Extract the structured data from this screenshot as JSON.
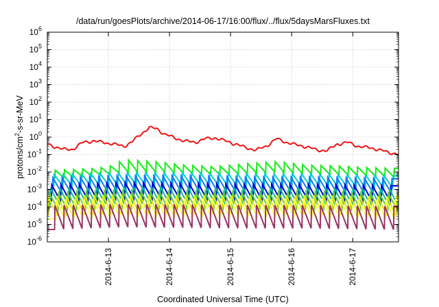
{
  "chart_data": {
    "type": "line",
    "title": "/data/run/goesPlots/archive/2014-06-17/16:00/flux/../flux/5daysMarsFluxes.txt",
    "xlabel": "Coordinated Universal Time (UTC)",
    "ylabel": "protons/cm²-s-sr-MeV",
    "ylabel_parts": {
      "base": "protons/cm",
      "sup": "2",
      "rest": "-s-sr-MeV"
    },
    "y_scale": "log",
    "ylim": [
      1e-06,
      1000000.0
    ],
    "y_ticks": [
      {
        "exp": "-6"
      },
      {
        "exp": "-5"
      },
      {
        "exp": "-4"
      },
      {
        "exp": "-3"
      },
      {
        "exp": "-2"
      },
      {
        "exp": "-1"
      },
      {
        "exp": "0"
      },
      {
        "exp": "1"
      },
      {
        "exp": "2"
      },
      {
        "exp": "3"
      },
      {
        "exp": "4"
      },
      {
        "exp": "5"
      },
      {
        "exp": "6"
      }
    ],
    "x_range": [
      "2014-06-12 00:00",
      "2014-06-17 18:00"
    ],
    "x_ticks": [
      "2014-6-13",
      "2014-6-14",
      "2014-6-15",
      "2014-6-16",
      "2014-6-17"
    ],
    "grid": true,
    "legend": "none",
    "sawtooth_period_hours": 3.6,
    "series": [
      {
        "color": "#ee1111",
        "kind": "smooth",
        "x": [
          "2014-06-12 00:00",
          "2014-06-12 06:00",
          "2014-06-12 10:00",
          "2014-06-12 14:00",
          "2014-06-12 18:00",
          "2014-06-12 22:00",
          "2014-06-13 02:00",
          "2014-06-13 06:00",
          "2014-06-13 09:00",
          "2014-06-13 12:00",
          "2014-06-13 16:00",
          "2014-06-13 19:00",
          "2014-06-13 22:00",
          "2014-06-14 02:00",
          "2014-06-14 06:00",
          "2014-06-14 10:00",
          "2014-06-14 14:00",
          "2014-06-14 18:00",
          "2014-06-14 22:00",
          "2014-06-15 02:00",
          "2014-06-15 06:00",
          "2014-06-15 10:00",
          "2014-06-15 14:00",
          "2014-06-15 18:00",
          "2014-06-15 22:00",
          "2014-06-16 02:00",
          "2014-06-16 06:00",
          "2014-06-16 10:00",
          "2014-06-16 14:00",
          "2014-06-16 18:00",
          "2014-06-16 22:00",
          "2014-06-17 02:00",
          "2014-06-17 06:00",
          "2014-06-17 10:00",
          "2014-06-17 14:00",
          "2014-06-17 18:00"
        ],
        "y": [
          0.4,
          0.2,
          0.2,
          0.5,
          0.6,
          0.5,
          0.4,
          0.3,
          0.5,
          1.2,
          3.5,
          3.0,
          1.5,
          0.9,
          0.6,
          0.5,
          0.8,
          0.9,
          0.6,
          0.4,
          0.25,
          0.18,
          0.3,
          0.8,
          0.5,
          0.35,
          0.28,
          0.18,
          0.17,
          0.4,
          0.5,
          0.3,
          0.25,
          0.2,
          0.13,
          0.11
        ]
      },
      {
        "color": "#11ee11",
        "kind": "sawtooth",
        "x": [
          "2014-06-12 00:00",
          "2014-06-12 18:00",
          "2014-06-13 00:00",
          "2014-06-13 06:00",
          "2014-06-13 18:00",
          "2014-06-14 06:00",
          "2014-06-14 18:00",
          "2014-06-15 06:00",
          "2014-06-15 18:00",
          "2014-06-16 06:00",
          "2014-06-16 18:00",
          "2014-06-17 06:00",
          "2014-06-17 18:00"
        ],
        "peak": [
          0.012,
          0.016,
          0.02,
          0.05,
          0.04,
          0.025,
          0.02,
          0.03,
          0.04,
          0.025,
          0.022,
          0.018,
          0.016
        ],
        "trough": [
          0.004,
          0.006,
          0.007,
          0.01,
          0.01,
          0.009,
          0.007,
          0.008,
          0.01,
          0.008,
          0.007,
          0.006,
          0.005
        ]
      },
      {
        "color": "#00cccc",
        "kind": "sawtooth",
        "x": [
          "2014-06-12 00:00",
          "2014-06-13 06:00",
          "2014-06-14 06:00",
          "2014-06-15 06:00",
          "2014-06-16 06:00",
          "2014-06-17 18:00"
        ],
        "peak": [
          0.007,
          0.009,
          0.009,
          0.008,
          0.008,
          0.006
        ],
        "trough": [
          0.0015,
          0.0018,
          0.0018,
          0.0016,
          0.0016,
          0.0012
        ]
      },
      {
        "color": "#1177ff",
        "kind": "sawtooth",
        "x": [
          "2014-06-12 00:00",
          "2014-06-13 06:00",
          "2014-06-14 06:00",
          "2014-06-15 06:00",
          "2014-06-16 06:00",
          "2014-06-17 18:00"
        ],
        "peak": [
          0.0045,
          0.006,
          0.006,
          0.005,
          0.005,
          0.004
        ],
        "trough": [
          0.0006,
          0.0008,
          0.0008,
          0.0007,
          0.0007,
          0.0006
        ]
      },
      {
        "color": "#0000cc",
        "kind": "sawtooth",
        "x": [
          "2014-06-12 00:00",
          "2014-06-13 06:00",
          "2014-06-14 06:00",
          "2014-06-15 06:00",
          "2014-06-16 06:00",
          "2014-06-17 18:00"
        ],
        "peak": [
          0.0018,
          0.0025,
          0.0022,
          0.002,
          0.002,
          0.0016
        ],
        "trough": [
          0.0002,
          0.0003,
          0.00028,
          0.00025,
          0.00025,
          0.0002
        ]
      },
      {
        "color": "#11bb99",
        "kind": "sawtooth",
        "x": [
          "2014-06-12 00:00",
          "2014-06-13 06:00",
          "2014-06-14 06:00",
          "2014-06-15 06:00",
          "2014-06-16 06:00",
          "2014-06-17 18:00"
        ],
        "peak": [
          0.0012,
          0.0015,
          0.0014,
          0.0013,
          0.0013,
          0.0011
        ],
        "trough": [
          0.00012,
          0.00015,
          0.00014,
          0.00013,
          0.00013,
          0.0001
        ]
      },
      {
        "color": "#66cc33",
        "kind": "sawtooth",
        "x": [
          "2014-06-12 00:00",
          "2014-06-13 06:00",
          "2014-06-14 06:00",
          "2014-06-15 06:00",
          "2014-06-16 06:00",
          "2014-06-17 18:00"
        ],
        "peak": [
          0.0006,
          0.0008,
          0.0007,
          0.0007,
          0.0007,
          0.0006
        ],
        "trough": [
          7e-05,
          9e-05,
          8e-05,
          8e-05,
          8e-05,
          7e-05
        ]
      },
      {
        "color": "#e8e800",
        "kind": "sawtooth",
        "x": [
          "2014-06-12 00:00",
          "2014-06-13 06:00",
          "2014-06-14 06:00",
          "2014-06-15 06:00",
          "2014-06-16 06:00",
          "2014-06-17 18:00"
        ],
        "peak": [
          0.0004,
          0.0005,
          0.00045,
          0.00045,
          0.00045,
          0.0004
        ],
        "trough": [
          3e-05,
          4e-05,
          4e-05,
          4e-05,
          4e-05,
          3e-05
        ]
      },
      {
        "color": "#ffff55",
        "kind": "sawtooth",
        "x": [
          "2014-06-12 00:00",
          "2014-06-13 06:00",
          "2014-06-14 06:00",
          "2014-06-15 06:00",
          "2014-06-16 06:00",
          "2014-06-17 18:00"
        ],
        "peak": [
          0.00025,
          0.0003,
          0.0003,
          0.0003,
          0.0003,
          0.00025
        ],
        "trough": [
          2e-05,
          2.5e-05,
          2.5e-05,
          2.5e-05,
          2.5e-05,
          2e-05
        ]
      },
      {
        "color": "#993366",
        "kind": "sawtooth",
        "x": [
          "2014-06-12 00:00",
          "2014-06-13 06:00",
          "2014-06-14 06:00",
          "2014-06-15 06:00",
          "2014-06-16 06:00",
          "2014-06-17 18:00"
        ],
        "peak": [
          0.00012,
          0.00015,
          0.00014,
          0.00013,
          0.00013,
          0.00011
        ],
        "trough": [
          5e-06,
          7e-06,
          6.5e-06,
          6e-06,
          6e-06,
          5e-06
        ]
      }
    ]
  }
}
